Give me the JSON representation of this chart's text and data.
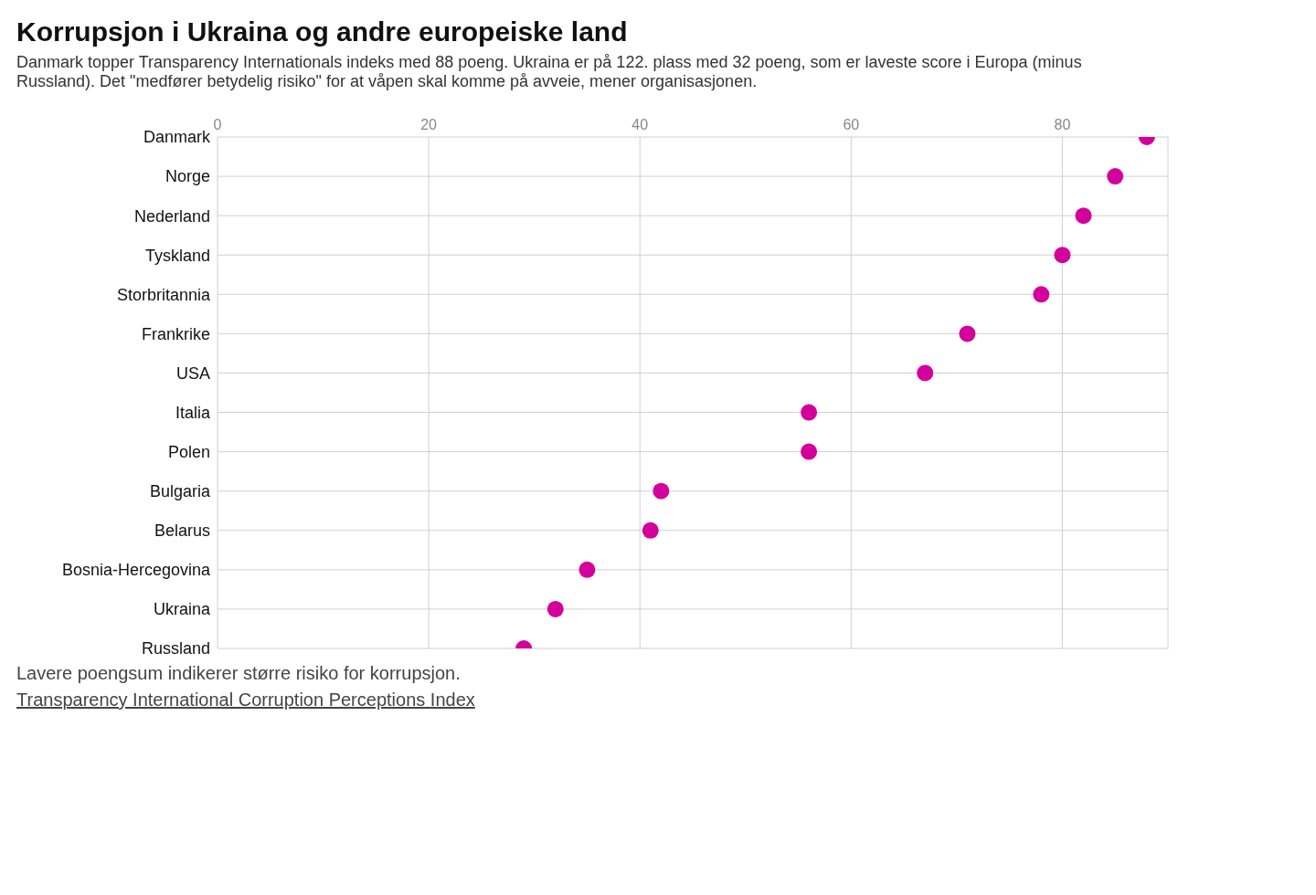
{
  "chart_data": {
    "type": "scatter",
    "title": "Korrupsjon i Ukraina og andre europeiske land",
    "subtitle": "Danmark topper Transparency Internationals indeks med 88 poeng. Ukraina er på 122. plass med 32 poeng, som er laveste score i Europa (minus Russland). Det \"medfører betydelig risiko\" for at våpen skal komme på avveie, mener organisasjonen.",
    "categories": [
      "Danmark",
      "Norge",
      "Nederland",
      "Tyskland",
      "Storbritannia",
      "Frankrike",
      "USA",
      "Italia",
      "Polen",
      "Bulgaria",
      "Belarus",
      "Bosnia-Hercegovina",
      "Ukraina",
      "Russland"
    ],
    "orientation": "horizontal",
    "series": [
      {
        "color": "#d4009b",
        "values": [
          88,
          85,
          82,
          80,
          78,
          71,
          67,
          56,
          56,
          42,
          41,
          35,
          32,
          29
        ]
      }
    ],
    "xlim": [
      0,
      90
    ],
    "xticks": [
      0,
      20,
      40,
      60,
      80
    ],
    "grid": true,
    "marker": "circle",
    "annotations": [
      "Lavere poengsum indikerer større risiko for korrupsjon.",
      "Transparency International Corruption Perceptions Index"
    ]
  }
}
